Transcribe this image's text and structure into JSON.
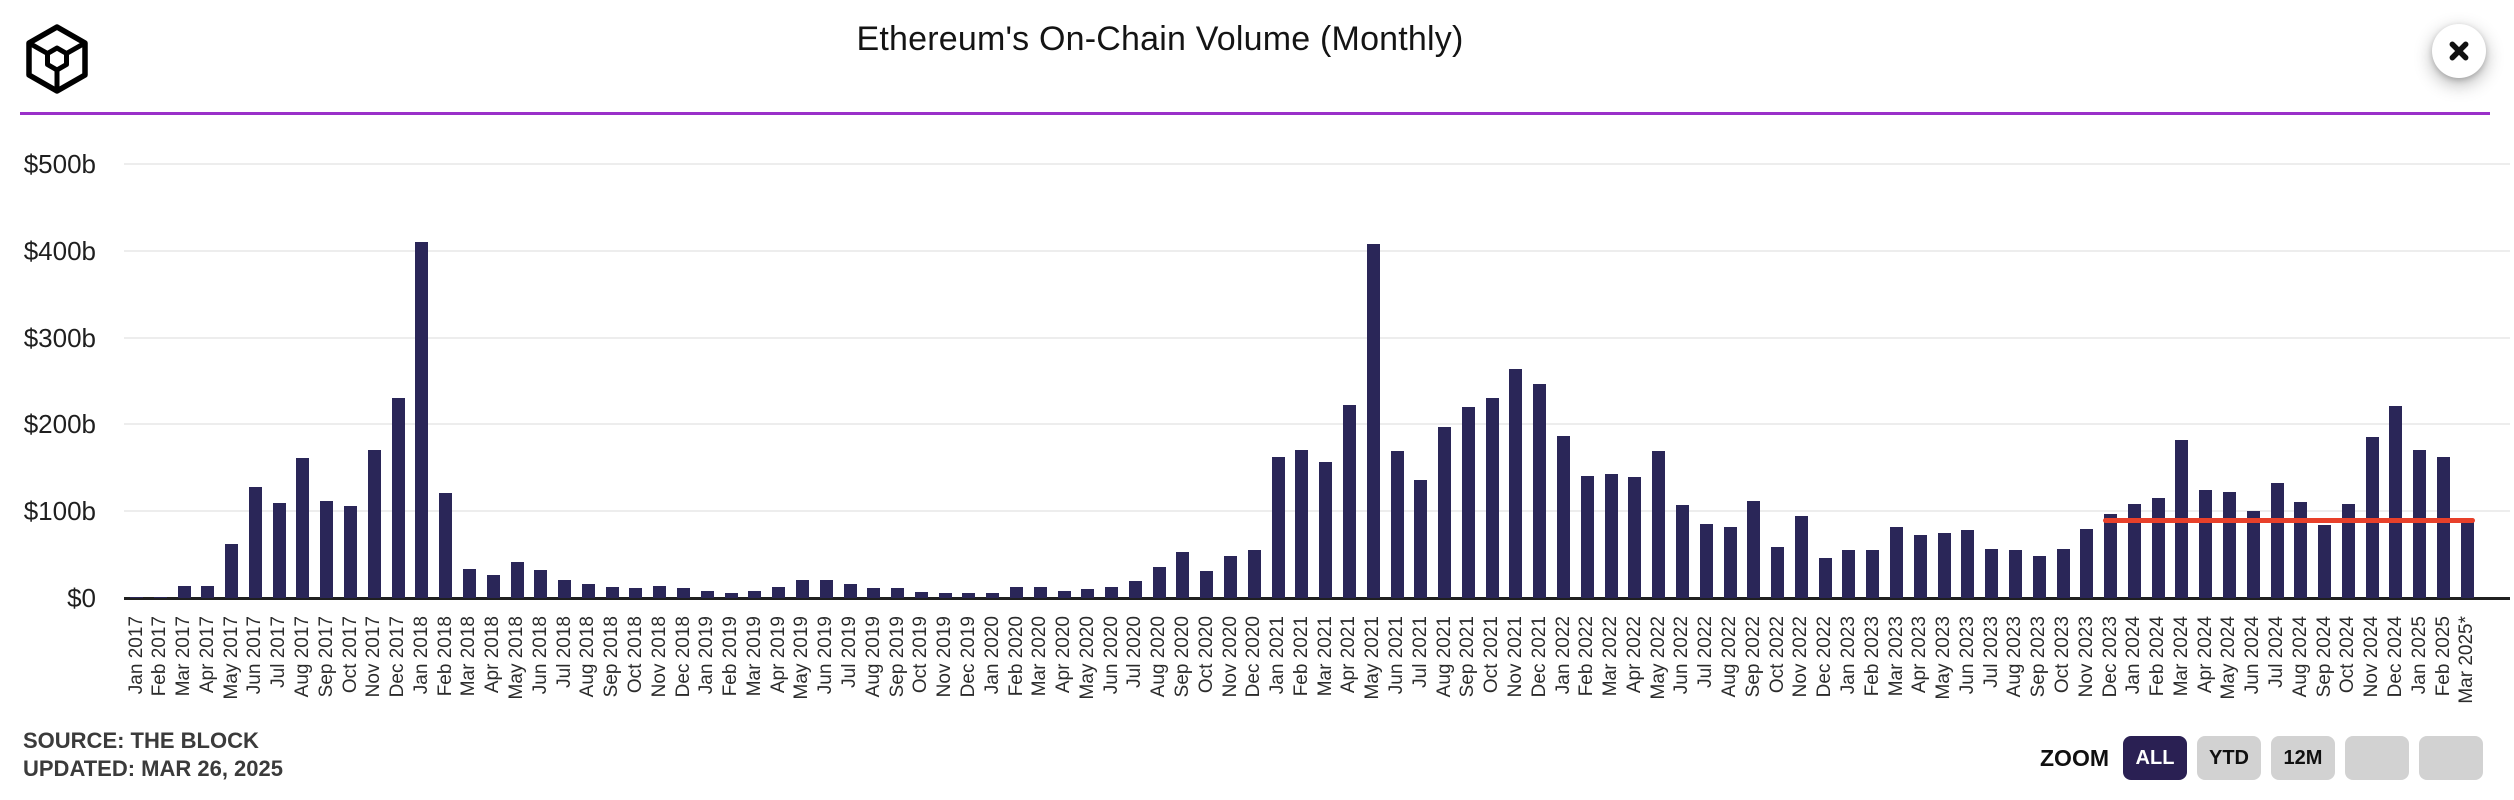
{
  "header": {
    "title": "Ethereum's On-Chain Volume (Monthly)",
    "logo_name": "the-block-cube-logo",
    "close_label": "close"
  },
  "footer": {
    "source_line1": "SOURCE: THE BLOCK",
    "source_line2": "UPDATED: MAR 26, 2025"
  },
  "zoom_controls": {
    "label": "ZOOM",
    "buttons": [
      {
        "label": "ALL",
        "selected": true
      },
      {
        "label": "YTD",
        "selected": false
      },
      {
        "label": "12M",
        "selected": false
      },
      {
        "label": "",
        "selected": false
      },
      {
        "label": "",
        "selected": false
      }
    ]
  },
  "colors": {
    "bar": "#2a2658",
    "red_line": "#e8402a",
    "divider": "#9a30c9",
    "selected_button_bg": "#2a2053",
    "button_bg": "#d2d2d2",
    "axis": "#202020",
    "gridline": "#ededed"
  },
  "chart_data": {
    "type": "bar",
    "title": "Ethereum's On-Chain Volume (Monthly)",
    "unit": "billions USD",
    "ylim": [
      0,
      500
    ],
    "grid": true,
    "legend": "none",
    "y_ticks": [
      {
        "value": 0,
        "label": "$0"
      },
      {
        "value": 100,
        "label": "$100b"
      },
      {
        "value": 200,
        "label": "$200b"
      },
      {
        "value": 300,
        "label": "$300b"
      },
      {
        "value": 400,
        "label": "$400b"
      },
      {
        "value": 500,
        "label": "$500b"
      }
    ],
    "categories": [
      "Jan 2017",
      "Feb 2017",
      "Mar 2017",
      "Apr 2017",
      "May 2017",
      "Jun 2017",
      "Jul 2017",
      "Aug 2017",
      "Sep 2017",
      "Oct 2017",
      "Nov 2017",
      "Dec 2017",
      "Jan 2018",
      "Feb 2018",
      "Mar 2018",
      "Apr 2018",
      "May 2018",
      "Jun 2018",
      "Jul 2018",
      "Aug 2018",
      "Sep 2018",
      "Oct 2018",
      "Nov 2018",
      "Dec 2018",
      "Jan 2019",
      "Feb 2019",
      "Mar 2019",
      "Apr 2019",
      "May 2019",
      "Jun 2019",
      "Jul 2019",
      "Aug 2019",
      "Sep 2019",
      "Oct 2019",
      "Nov 2019",
      "Dec 2019",
      "Jan 2020",
      "Feb 2020",
      "Mar 2020",
      "Apr 2020",
      "May 2020",
      "Jun 2020",
      "Jul 2020",
      "Aug 2020",
      "Sep 2020",
      "Oct 2020",
      "Nov 2020",
      "Dec 2020",
      "Jan 2021",
      "Feb 2021",
      "Mar 2021",
      "Apr 2021",
      "May 2021",
      "Jun 2021",
      "Jul 2021",
      "Aug 2021",
      "Sep 2021",
      "Oct 2021",
      "Nov 2021",
      "Dec 2021",
      "Jan 2022",
      "Feb 2022",
      "Mar 2022",
      "Apr 2022",
      "May 2022",
      "Jun 2022",
      "Jul 2022",
      "Aug 2022",
      "Sep 2022",
      "Oct 2022",
      "Nov 2022",
      "Dec 2022",
      "Jan 2023",
      "Feb 2023",
      "Mar 2023",
      "Apr 2023",
      "May 2023",
      "Jun 2023",
      "Jul 2023",
      "Aug 2023",
      "Sep 2023",
      "Oct 2023",
      "Nov 2023",
      "Dec 2023",
      "Jan 2024",
      "Feb 2024",
      "Mar 2024",
      "Apr 2024",
      "May 2024",
      "Jun 2024",
      "Jul 2024",
      "Aug 2024",
      "Sep 2024",
      "Oct 2024",
      "Nov 2024",
      "Dec 2024",
      "Jan 2025",
      "Feb 2025",
      "Mar 2025*"
    ],
    "values": [
      1,
      1,
      14,
      14,
      62,
      128,
      110,
      161,
      112,
      106,
      171,
      230,
      410,
      121,
      33,
      27,
      41,
      32,
      21,
      16,
      13,
      11,
      14,
      11,
      8,
      6,
      8,
      13,
      21,
      21,
      16,
      11,
      11,
      7,
      6,
      6,
      6,
      13,
      13,
      8,
      10,
      13,
      20,
      36,
      53,
      31,
      48,
      55,
      162,
      171,
      157,
      222,
      408,
      169,
      136,
      197,
      220,
      230,
      264,
      246,
      187,
      141,
      143,
      139,
      169,
      107,
      85,
      82,
      112,
      59,
      94,
      46,
      55,
      55,
      82,
      73,
      75,
      78,
      57,
      55,
      48,
      57,
      80,
      97,
      108,
      115,
      182,
      124,
      122,
      100,
      133,
      111,
      84,
      108,
      185,
      221,
      170,
      162,
      90
    ],
    "reference_line": {
      "value": 89,
      "start_category": "Dec 2023",
      "end_category": "Mar 2025*"
    }
  }
}
